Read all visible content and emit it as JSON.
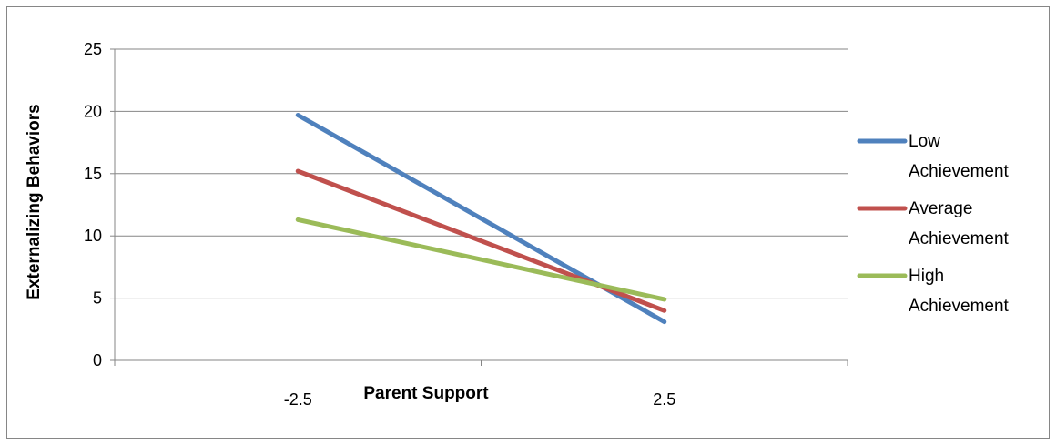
{
  "chart_data": {
    "type": "line",
    "title": "",
    "xlabel": "Parent Support",
    "ylabel": "Externalizing Behaviors",
    "categories": [
      "-2.5",
      "2.5"
    ],
    "ylim": [
      0,
      25
    ],
    "yticks": [
      "0",
      "5",
      "10",
      "15",
      "20",
      "25"
    ],
    "grid": true,
    "legend_position": "right",
    "series": [
      {
        "name": "Low Achievement",
        "legend_lines": [
          "Low",
          "Achievement"
        ],
        "color": "#4F81BD",
        "values": [
          19.7,
          3.1
        ]
      },
      {
        "name": "Average Achievement",
        "legend_lines": [
          "Average",
          "Achievement"
        ],
        "color": "#C0504D",
        "values": [
          15.2,
          4.0
        ]
      },
      {
        "name": "High Achievement",
        "legend_lines": [
          "High",
          "Achievement"
        ],
        "color": "#9BBB59",
        "values": [
          11.3,
          4.9
        ]
      }
    ]
  }
}
